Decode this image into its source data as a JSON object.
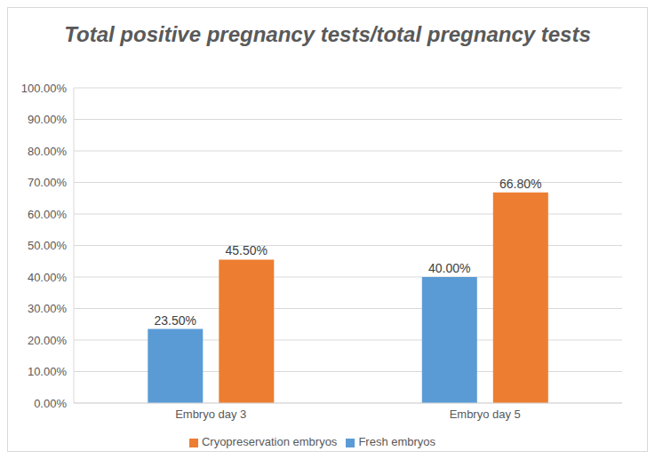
{
  "chart_data": {
    "type": "bar",
    "title": "Total positive pregnancy tests/total pregnancy tests",
    "categories": [
      "Embryo day 3",
      "Embryo day 5"
    ],
    "series": [
      {
        "name": "Fresh embryos",
        "color": "#5b9bd5",
        "values": [
          23.5,
          40.0
        ],
        "value_labels": [
          "23.50%",
          "40.00%"
        ]
      },
      {
        "name": "Cryopreservation embryos",
        "color": "#ed7d31",
        "values": [
          45.5,
          66.8
        ],
        "value_labels": [
          "45.50%",
          "66.80%"
        ]
      }
    ],
    "ylim": [
      0,
      100
    ],
    "yticks": [
      {
        "value": 0,
        "label": "0.00%"
      },
      {
        "value": 10,
        "label": "10.00%"
      },
      {
        "value": 20,
        "label": "20.00%"
      },
      {
        "value": 30,
        "label": "30.00%"
      },
      {
        "value": 40,
        "label": "40.00%"
      },
      {
        "value": 50,
        "label": "50.00%"
      },
      {
        "value": 60,
        "label": "60.00%"
      },
      {
        "value": 70,
        "label": "70.00%"
      },
      {
        "value": 80,
        "label": "80.00%"
      },
      {
        "value": 90,
        "label": "90.00%"
      },
      {
        "value": 100,
        "label": "100.00%"
      }
    ],
    "grid": true,
    "legend": "bottom",
    "data_labels": true
  }
}
